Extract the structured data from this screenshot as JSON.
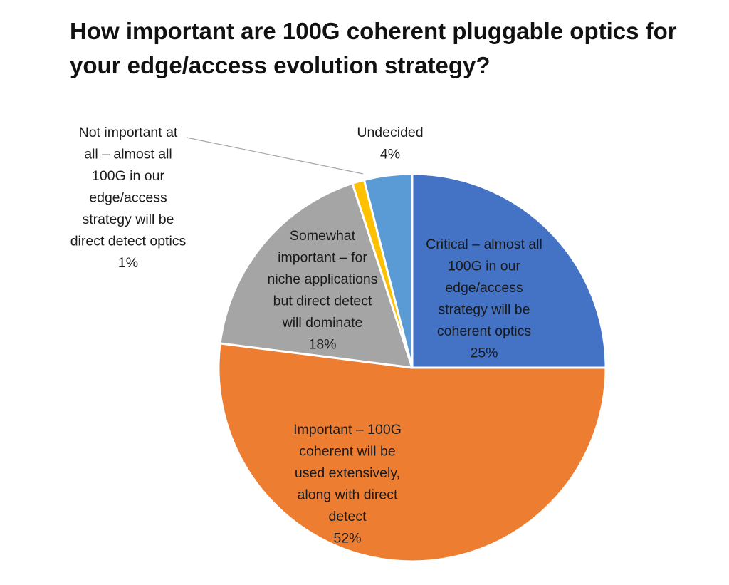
{
  "chart_data": {
    "type": "pie",
    "title": "How important are 100G coherent pluggable optics for your edge/access evolution strategy?",
    "slices": [
      {
        "label": "Critical – almost all 100G in our edge/access strategy will be coherent optics",
        "label_lines": [
          "Critical – almost all",
          "100G in our",
          "edge/access",
          "strategy will be",
          "coherent optics"
        ],
        "value": 25,
        "value_label": "25%",
        "color": "#4472C4"
      },
      {
        "label": "Important – 100G coherent will be used extensively, along with direct detect",
        "label_lines": [
          "Important – 100G",
          "coherent will be",
          "used extensively,",
          "along with direct",
          "detect"
        ],
        "value": 52,
        "value_label": "52%",
        "color": "#ED7D31"
      },
      {
        "label": "Somewhat important – for niche applications but direct detect will dominate",
        "label_lines": [
          "Somewhat",
          "important – for",
          "niche applications",
          "but direct detect",
          "will dominate"
        ],
        "value": 18,
        "value_label": "18%",
        "color": "#A5A5A5"
      },
      {
        "label": "Not important at all – almost all 100G in our edge/access strategy will be direct detect optics",
        "label_lines": [
          "Not important at",
          "all – almost all",
          "100G in our",
          "edge/access",
          "strategy will be",
          "direct detect optics"
        ],
        "value": 1,
        "value_label": "1%",
        "color": "#FFC000"
      },
      {
        "label": "Undecided",
        "label_lines": [
          "Undecided"
        ],
        "value": 4,
        "value_label": "4%",
        "color": "#5B9BD5"
      }
    ],
    "legend": "none",
    "leader_line_color": "#A6A6A6"
  }
}
